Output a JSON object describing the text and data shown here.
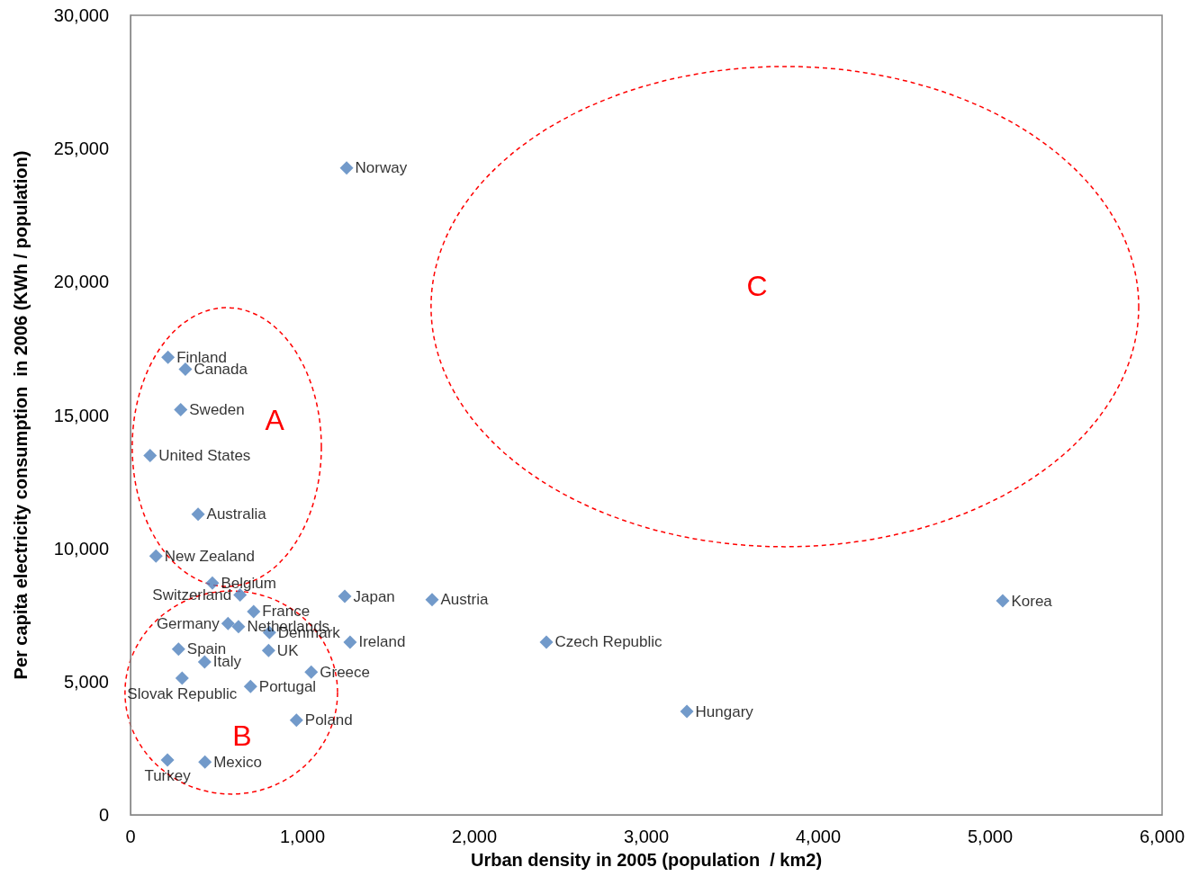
{
  "chart_data": {
    "type": "scatter",
    "xlabel": "Urban density in 2005 (population  / km2)",
    "ylabel": "Per capita electricity consumption  in 2006 (KWh / population)",
    "xlim": [
      0,
      6000
    ],
    "xticks": [
      0,
      {
        "value": 1000,
        "label": "1,000"
      },
      {
        "value": 2000,
        "label": "2,000"
      },
      {
        "value": 3000,
        "label": "3,000"
      },
      {
        "value": 4000,
        "label": "4,000"
      },
      {
        "value": 5000,
        "label": "5,000"
      },
      {
        "value": 6000,
        "label": "6,000"
      }
    ],
    "ylim": [
      0,
      30000
    ],
    "yticks": [
      0,
      {
        "value": 5000,
        "label": "5,000"
      },
      {
        "value": 10000,
        "label": "10,000"
      },
      {
        "value": 15000,
        "label": "15,000"
      },
      {
        "value": 20000,
        "label": "20,000"
      },
      {
        "value": 25000,
        "label": "25,000"
      },
      {
        "value": 30000,
        "label": "30,000"
      }
    ],
    "grid": false,
    "legend": false,
    "marker": "diamond",
    "annotations": [
      "A",
      "B",
      "C"
    ],
    "series": [
      {
        "name": "Finland",
        "color": "#4f81bd",
        "x": [
          218
        ],
        "values": [
          17170
        ]
      },
      {
        "name": "Canada",
        "color": "#4f81bd",
        "x": [
          319
        ],
        "values": [
          16720
        ]
      },
      {
        "name": "Sweden",
        "color": "#4f81bd",
        "x": [
          292
        ],
        "values": [
          15200
        ]
      },
      {
        "name": "United States",
        "color": "#4f81bd",
        "x": [
          114
        ],
        "values": [
          13480
        ]
      },
      {
        "name": "Australia",
        "color": "#4f81bd",
        "x": [
          393
        ],
        "values": [
          11280
        ]
      },
      {
        "name": "New Zealand",
        "color": "#4f81bd",
        "x": [
          148
        ],
        "values": [
          9710
        ]
      },
      {
        "name": "Belgium",
        "color": "#4f81bd",
        "x": [
          476
        ],
        "values": [
          8700
        ]
      },
      {
        "name": "Switzerland",
        "color": "#4f81bd",
        "x": [
          637
        ],
        "values": [
          8250
        ]
      },
      {
        "name": "Japan",
        "color": "#4f81bd",
        "x": [
          1246
        ],
        "values": [
          8200
        ]
      },
      {
        "name": "Austria",
        "color": "#4f81bd",
        "x": [
          1754
        ],
        "values": [
          8070
        ]
      },
      {
        "name": "Korea",
        "color": "#4f81bd",
        "x": [
          5073
        ],
        "values": [
          8030
        ]
      },
      {
        "name": "France",
        "color": "#4f81bd",
        "x": [
          716
        ],
        "values": [
          7630
        ]
      },
      {
        "name": "Germany",
        "color": "#4f81bd",
        "x": [
          567
        ],
        "values": [
          7180
        ]
      },
      {
        "name": "Netherlands",
        "color": "#4f81bd",
        "x": [
          628
        ],
        "values": [
          7060
        ]
      },
      {
        "name": "Denmark",
        "color": "#4f81bd",
        "x": [
          808
        ],
        "values": [
          6840
        ]
      },
      {
        "name": "Ireland",
        "color": "#4f81bd",
        "x": [
          1277
        ],
        "values": [
          6480
        ]
      },
      {
        "name": "Czech Republic",
        "color": "#4f81bd",
        "x": [
          2419
        ],
        "values": [
          6480
        ]
      },
      {
        "name": "Spain",
        "color": "#4f81bd",
        "x": [
          279
        ],
        "values": [
          6220
        ]
      },
      {
        "name": "UK",
        "color": "#4f81bd",
        "x": [
          803
        ],
        "values": [
          6170
        ]
      },
      {
        "name": "Italy",
        "color": "#4f81bd",
        "x": [
          431
        ],
        "values": [
          5740
        ]
      },
      {
        "name": "Greece",
        "color": "#4f81bd",
        "x": [
          1051
        ],
        "values": [
          5360
        ]
      },
      {
        "name": "Slovak Republic",
        "color": "#4f81bd",
        "x": [
          300
        ],
        "values": [
          5130
        ]
      },
      {
        "name": "Portugal",
        "color": "#4f81bd",
        "x": [
          698
        ],
        "values": [
          4820
        ]
      },
      {
        "name": "Hungary",
        "color": "#4f81bd",
        "x": [
          3236
        ],
        "values": [
          3880
        ]
      },
      {
        "name": "Poland",
        "color": "#4f81bd",
        "x": [
          965
        ],
        "values": [
          3550
        ]
      },
      {
        "name": "Turkey",
        "color": "#4f81bd",
        "x": [
          215
        ],
        "values": [
          2060
        ]
      },
      {
        "name": "Mexico",
        "color": "#4f81bd",
        "x": [
          433
        ],
        "values": [
          1980
        ]
      },
      {
        "name": "Norway",
        "color": "#4f81bd",
        "x": [
          1257
        ],
        "values": [
          24270
        ]
      }
    ]
  }
}
